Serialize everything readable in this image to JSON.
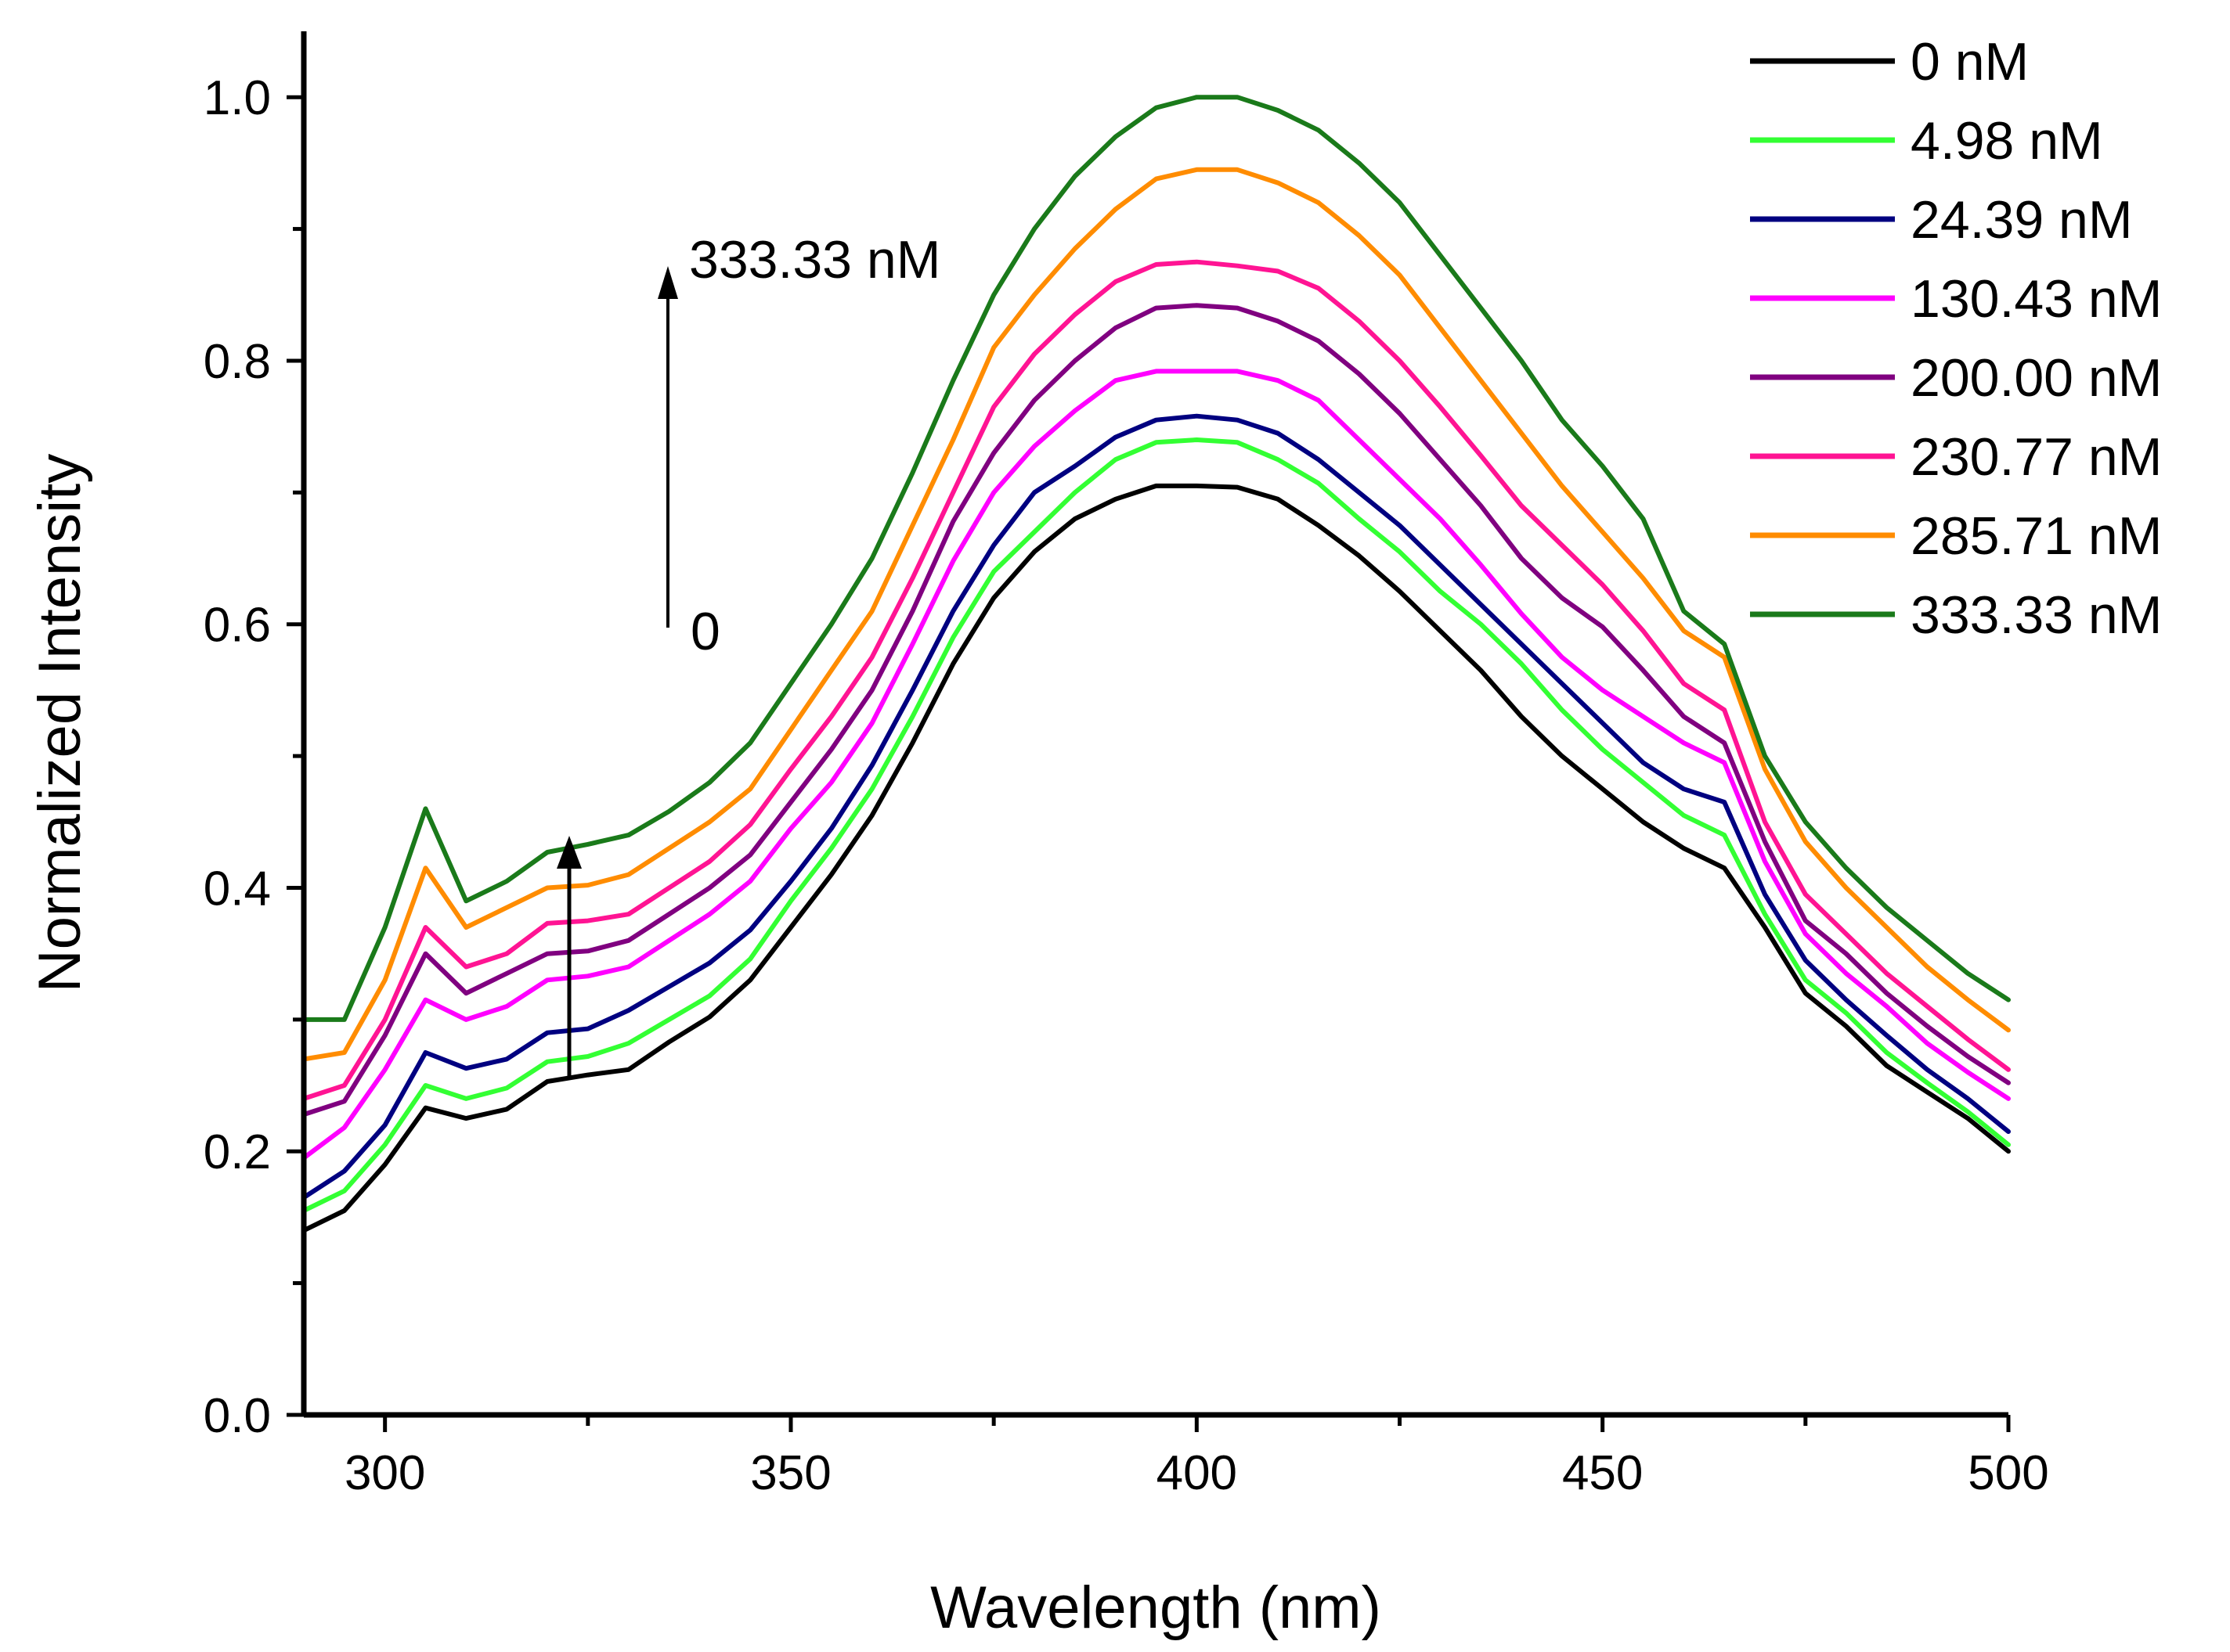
{
  "chart_data": {
    "type": "line",
    "title": "",
    "xlabel": "Wavelength (nm)",
    "ylabel": "Normalized Intensity",
    "xlim": [
      290,
      500
    ],
    "ylim": [
      0.0,
      1.05
    ],
    "xticks": [
      300,
      350,
      400,
      450,
      500
    ],
    "xtick_labels": [
      "300",
      "350",
      "400",
      "450",
      "500"
    ],
    "yticks": [
      0.0,
      0.2,
      0.4,
      0.6,
      0.8,
      1.0
    ],
    "ytick_labels": [
      "0.0",
      "0.2",
      "0.4",
      "0.6",
      "0.8",
      "1.0"
    ],
    "grid": false,
    "legend_position": "top-right",
    "x": [
      290,
      295,
      300,
      305,
      310,
      315,
      320,
      325,
      330,
      335,
      340,
      345,
      350,
      355,
      360,
      365,
      370,
      375,
      380,
      385,
      390,
      395,
      400,
      405,
      410,
      415,
      420,
      425,
      430,
      435,
      440,
      445,
      450,
      455,
      460,
      465,
      470,
      475,
      480,
      485,
      490,
      495,
      500
    ],
    "series": [
      {
        "name": "0 nM",
        "color": "#000000",
        "values": [
          0.14,
          0.155,
          0.19,
          0.233,
          0.225,
          0.232,
          0.253,
          0.258,
          0.262,
          0.283,
          0.302,
          0.33,
          0.37,
          0.41,
          0.455,
          0.51,
          0.57,
          0.62,
          0.655,
          0.68,
          0.695,
          0.705,
          0.705,
          0.704,
          0.695,
          0.675,
          0.652,
          0.625,
          0.595,
          0.565,
          0.53,
          0.5,
          0.475,
          0.45,
          0.43,
          0.415,
          0.37,
          0.32,
          0.295,
          0.265,
          0.245,
          0.225,
          0.2
        ]
      },
      {
        "name": "4.98 nM",
        "color": "#33ff33",
        "values": [
          0.155,
          0.17,
          0.205,
          0.25,
          0.24,
          0.248,
          0.268,
          0.272,
          0.282,
          0.3,
          0.318,
          0.346,
          0.39,
          0.43,
          0.475,
          0.53,
          0.59,
          0.64,
          0.67,
          0.7,
          0.725,
          0.738,
          0.74,
          0.738,
          0.725,
          0.707,
          0.68,
          0.655,
          0.625,
          0.6,
          0.57,
          0.535,
          0.505,
          0.48,
          0.455,
          0.44,
          0.38,
          0.33,
          0.305,
          0.275,
          0.252,
          0.23,
          0.205
        ]
      },
      {
        "name": "24.39 nM",
        "color": "#000080",
        "values": [
          0.165,
          0.185,
          0.22,
          0.275,
          0.263,
          0.27,
          0.29,
          0.293,
          0.307,
          0.325,
          0.343,
          0.368,
          0.405,
          0.445,
          0.493,
          0.55,
          0.61,
          0.66,
          0.7,
          0.72,
          0.742,
          0.755,
          0.758,
          0.755,
          0.745,
          0.725,
          0.7,
          0.675,
          0.645,
          0.615,
          0.585,
          0.555,
          0.525,
          0.495,
          0.475,
          0.465,
          0.395,
          0.345,
          0.315,
          0.288,
          0.262,
          0.24,
          0.215
        ]
      },
      {
        "name": "130.43 nM",
        "color": "#ff00ff",
        "values": [
          0.195,
          0.218,
          0.262,
          0.315,
          0.3,
          0.31,
          0.33,
          0.333,
          0.34,
          0.36,
          0.38,
          0.405,
          0.445,
          0.48,
          0.525,
          0.585,
          0.648,
          0.7,
          0.735,
          0.762,
          0.785,
          0.792,
          0.792,
          0.792,
          0.785,
          0.77,
          0.74,
          0.71,
          0.68,
          0.645,
          0.608,
          0.575,
          0.55,
          0.53,
          0.51,
          0.495,
          0.42,
          0.365,
          0.335,
          0.31,
          0.282,
          0.26,
          0.24
        ]
      },
      {
        "name": "200.00 nM",
        "color": "#800080",
        "values": [
          0.228,
          0.238,
          0.288,
          0.35,
          0.32,
          0.335,
          0.35,
          0.352,
          0.36,
          0.38,
          0.4,
          0.425,
          0.465,
          0.505,
          0.55,
          0.61,
          0.678,
          0.73,
          0.77,
          0.8,
          0.825,
          0.84,
          0.842,
          0.84,
          0.83,
          0.815,
          0.79,
          0.76,
          0.725,
          0.69,
          0.65,
          0.62,
          0.598,
          0.565,
          0.53,
          0.51,
          0.435,
          0.375,
          0.35,
          0.32,
          0.295,
          0.272,
          0.252
        ]
      },
      {
        "name": "230.77 nM",
        "color": "#ff1493",
        "values": [
          0.24,
          0.25,
          0.3,
          0.37,
          0.34,
          0.35,
          0.373,
          0.375,
          0.38,
          0.4,
          0.42,
          0.448,
          0.49,
          0.53,
          0.575,
          0.635,
          0.7,
          0.765,
          0.805,
          0.835,
          0.86,
          0.873,
          0.875,
          0.872,
          0.868,
          0.855,
          0.83,
          0.8,
          0.765,
          0.728,
          0.69,
          0.66,
          0.63,
          0.595,
          0.555,
          0.535,
          0.45,
          0.395,
          0.365,
          0.335,
          0.31,
          0.285,
          0.262
        ]
      },
      {
        "name": "285.71 nM",
        "color": "#ff8c00",
        "values": [
          0.27,
          0.275,
          0.33,
          0.415,
          0.37,
          0.385,
          0.4,
          0.402,
          0.41,
          0.43,
          0.45,
          0.475,
          0.52,
          0.565,
          0.61,
          0.675,
          0.74,
          0.81,
          0.85,
          0.885,
          0.915,
          0.938,
          0.945,
          0.945,
          0.935,
          0.92,
          0.895,
          0.865,
          0.825,
          0.785,
          0.745,
          0.705,
          0.67,
          0.635,
          0.595,
          0.575,
          0.49,
          0.435,
          0.4,
          0.37,
          0.34,
          0.315,
          0.292
        ]
      },
      {
        "name": "333.33 nM",
        "color": "#1a7a1a",
        "values": [
          0.3,
          0.3,
          0.37,
          0.46,
          0.39,
          0.405,
          0.427,
          0.433,
          0.44,
          0.458,
          0.48,
          0.51,
          0.555,
          0.6,
          0.65,
          0.715,
          0.785,
          0.85,
          0.9,
          0.94,
          0.97,
          0.992,
          1.0,
          1.0,
          0.99,
          0.975,
          0.95,
          0.92,
          0.88,
          0.84,
          0.8,
          0.755,
          0.72,
          0.68,
          0.61,
          0.585,
          0.5,
          0.45,
          0.415,
          0.385,
          0.36,
          0.335,
          0.315
        ]
      }
    ],
    "annotations": [
      {
        "text": "333.33 nM",
        "type": "arrow-top-label"
      },
      {
        "text": "0",
        "type": "arrow-bottom-label"
      }
    ]
  }
}
